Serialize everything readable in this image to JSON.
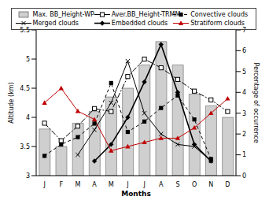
{
  "chart_data": {
    "type": "combo",
    "x_label": "Months",
    "y_label": "Altitude (km)",
    "y2_label": "Percentage of occurrence",
    "categories": [
      "J",
      "F",
      "M",
      "A",
      "M",
      "J",
      "J",
      "A",
      "S",
      "O",
      "N",
      "D"
    ],
    "ylim": [
      3,
      5.5
    ],
    "yticks": [
      3,
      3.5,
      4,
      4.5,
      5,
      5.5
    ],
    "y2lim": [
      0,
      7
    ],
    "y2ticks": [
      0,
      1,
      2,
      3,
      4,
      5,
      6,
      7
    ],
    "legend": "top",
    "series": [
      {
        "name": "Max. BB_Height-WP",
        "type": "bar",
        "color": "#cfcfcf",
        "values": [
          3.8,
          3.5,
          3.9,
          4.1,
          4.35,
          4.5,
          4.9,
          5.3,
          4.9,
          4.4,
          4.2,
          4.0
        ]
      },
      {
        "name": "Aver.BB_Height-TRMM",
        "type": "line",
        "color": "#000000",
        "marker": "square_open",
        "line_style": "dashdot",
        "values": [
          3.9,
          3.6,
          3.85,
          4.15,
          4.1,
          4.7,
          5.0,
          4.85,
          4.65,
          4.45,
          4.3,
          4.1
        ]
      },
      {
        "name": "Convective clouds",
        "type": "line",
        "axis": "y2",
        "color": "#000000",
        "marker": "square",
        "line_style": "dashed",
        "values": [
          0.95,
          1.5,
          1.85,
          2.5,
          4.45,
          2.1,
          2.6,
          3.25,
          3.85,
          2.7,
          0.8,
          null
        ]
      },
      {
        "name": "Merged clouds",
        "type": "line",
        "axis": "y2",
        "color": "#000000",
        "marker": "x",
        "line_style": "solid",
        "values": [
          null,
          null,
          1.0,
          2.2,
          3.5,
          5.5,
          3.0,
          2.0,
          1.5,
          1.4,
          0.7,
          null
        ]
      },
      {
        "name": "Embedded clouds",
        "type": "line",
        "axis": "y2",
        "color": "#000000",
        "marker": "diamond",
        "line_style": "solid",
        "values": [
          null,
          null,
          null,
          0.7,
          1.5,
          2.8,
          4.5,
          6.3,
          4.0,
          1.5,
          0.7,
          null
        ]
      },
      {
        "name": "Stratiform clouds",
        "type": "line",
        "axis": "y2",
        "color": "#c00000",
        "marker": "triangle",
        "line_style": "solid",
        "values": [
          3.5,
          4.2,
          3.1,
          2.7,
          1.2,
          1.4,
          1.6,
          1.8,
          1.8,
          2.3,
          3.0,
          3.7
        ]
      }
    ]
  }
}
